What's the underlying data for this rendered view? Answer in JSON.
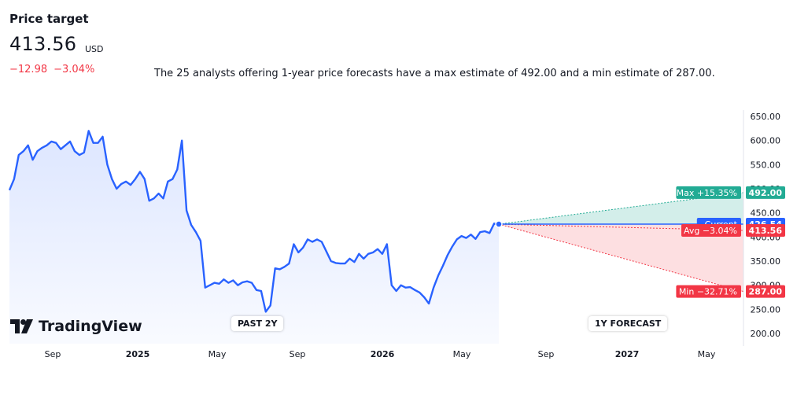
{
  "header": {
    "title": "Price target",
    "price": "413.56",
    "currency": "USD",
    "change_abs": "−12.98",
    "change_pct": "−3.04%",
    "summary": "The 25 analysts offering 1-year price forecasts have a max estimate of 492.00 and a min estimate of 287.00."
  },
  "chart_data": {
    "type": "line",
    "x_tick_labels": [
      "Sep",
      "2025",
      "May",
      "Sep",
      "2026",
      "May",
      "Sep",
      "2027",
      "May"
    ],
    "y_tick_labels": [
      "650.00",
      "600.00",
      "550.00",
      "500.00",
      "450.00",
      "400.00",
      "350.00",
      "300.00",
      "250.00",
      "200.00"
    ],
    "ylim": [
      200,
      650
    ],
    "period_labels": {
      "past": "PAST 2Y",
      "forecast": "1Y FORECAST"
    },
    "history": [
      497,
      520,
      570,
      578,
      590,
      560,
      578,
      585,
      590,
      598,
      595,
      582,
      590,
      598,
      578,
      570,
      575,
      620,
      595,
      595,
      608,
      550,
      520,
      500,
      510,
      515,
      508,
      520,
      535,
      520,
      475,
      480,
      490,
      480,
      515,
      520,
      540,
      600,
      455,
      425,
      410,
      392,
      295,
      300,
      305,
      303,
      312,
      305,
      310,
      300,
      306,
      308,
      305,
      290,
      288,
      245,
      258,
      335,
      333,
      338,
      345,
      385,
      368,
      378,
      395,
      390,
      395,
      390,
      370,
      350,
      346,
      345,
      345,
      355,
      348,
      365,
      355,
      365,
      368,
      375,
      365,
      385,
      300,
      288,
      300,
      295,
      296,
      290,
      285,
      275,
      262,
      295,
      320,
      340,
      362,
      380,
      395,
      402,
      398,
      405,
      396,
      410,
      412,
      408,
      428,
      426.54
    ],
    "series": [
      {
        "name": "Current",
        "value": 426.54,
        "display": "426.54",
        "label": "Current",
        "color": "#2962ff"
      },
      {
        "name": "Max",
        "value": 492.0,
        "display": "492.00",
        "label": "Max +15.35%",
        "color": "#22ab94"
      },
      {
        "name": "Avg",
        "value": 413.56,
        "display": "413.56",
        "label": "Avg −3.04%",
        "color": "#f23645"
      },
      {
        "name": "Min",
        "value": 287.0,
        "display": "287.00",
        "label": "Min −32.71%",
        "color": "#f23645"
      }
    ],
    "colors": {
      "line": "#2962ff",
      "area": "#2962ff",
      "max_fill": "#22ab94",
      "min_fill": "#f23645",
      "axis_text": "#131722"
    },
    "grid": false
  },
  "logo": {
    "text": "TradingView"
  }
}
